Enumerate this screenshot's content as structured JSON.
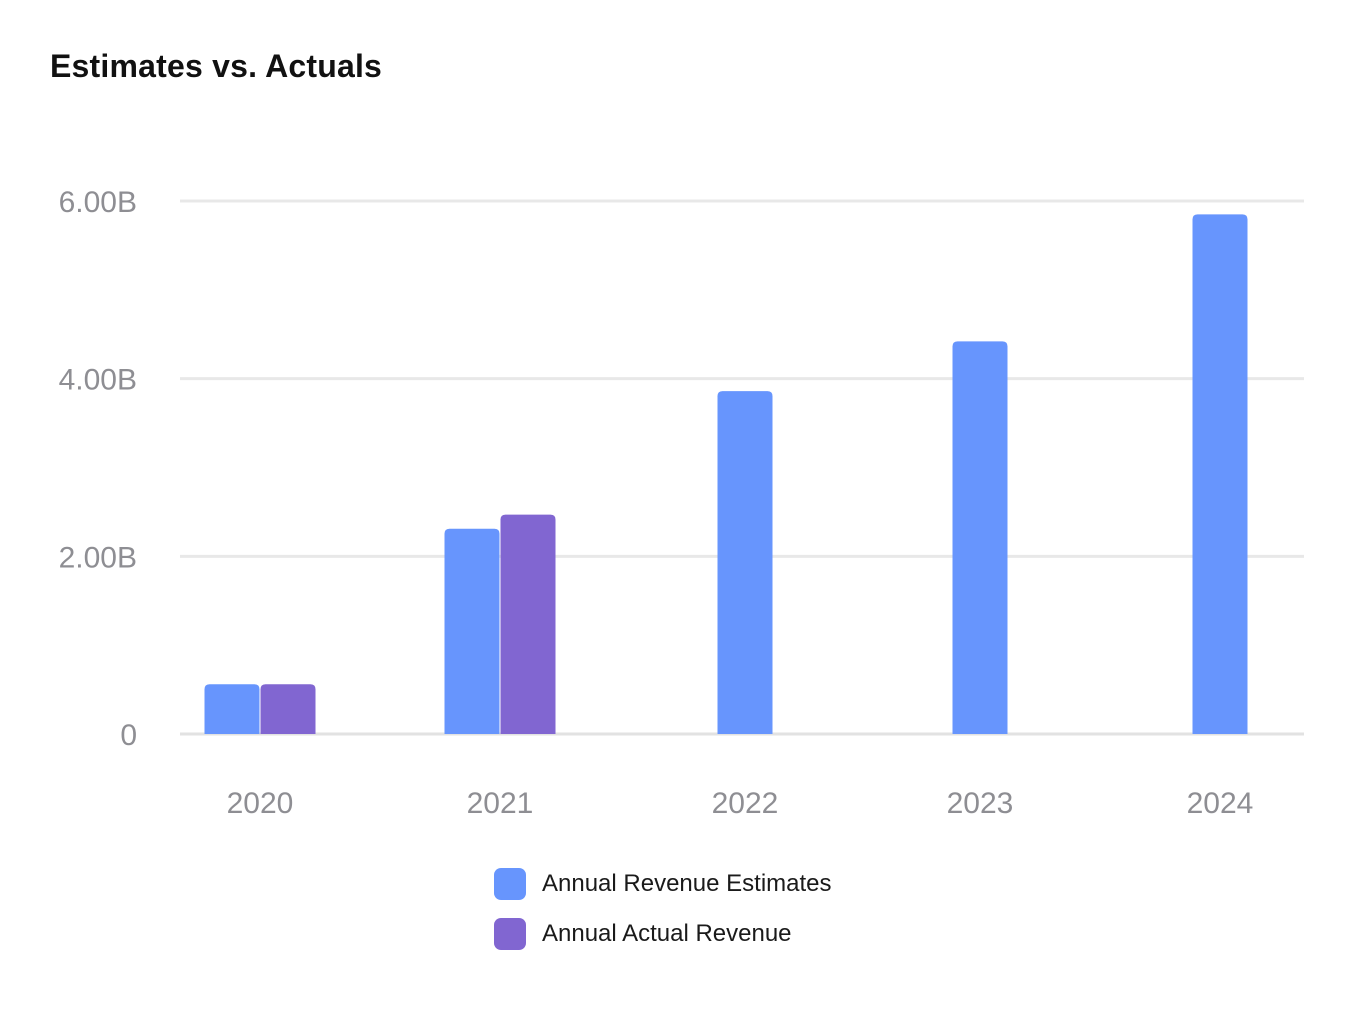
{
  "chart_data": {
    "type": "bar",
    "title": "Estimates vs. Actuals",
    "categories": [
      "2020",
      "2021",
      "2022",
      "2023",
      "2024"
    ],
    "series": [
      {
        "name": "Annual Revenue Estimates",
        "color": "#6795fd",
        "values": [
          0.56,
          2.31,
          3.86,
          4.42,
          5.85
        ]
      },
      {
        "name": "Annual Actual Revenue",
        "color": "#8166d1",
        "values": [
          0.56,
          2.47,
          null,
          null,
          null
        ]
      }
    ],
    "y_ticks": [
      "0",
      "2.00B",
      "4.00B",
      "6.00B"
    ],
    "y_tick_values": [
      0,
      2,
      4,
      6
    ],
    "ylim": [
      0,
      6
    ],
    "y_unit": "B",
    "grid": true,
    "legend_position": "bottom"
  }
}
